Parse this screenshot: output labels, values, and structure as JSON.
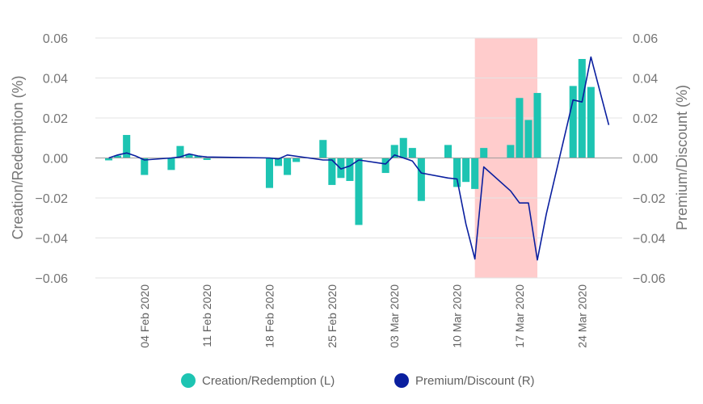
{
  "chart_data": {
    "type": "bar+line",
    "title": "",
    "xlabel": "",
    "ylabel_left": "Creation/Redemption (%)",
    "ylabel_right": "Premium/Discount (%)",
    "ylim_left": [
      -0.06,
      0.06
    ],
    "ylim_right": [
      -0.06,
      0.06
    ],
    "y_ticks_left": [
      "0.06",
      "0.04",
      "0.02",
      "0.00",
      "−0.02",
      "−0.04",
      "−0.06"
    ],
    "y_ticks_right": [
      "0.06",
      "0.04",
      "0.02",
      "0.00",
      "−0.02",
      "−0.04",
      "−0.06"
    ],
    "y_tick_values": [
      0.06,
      0.04,
      0.02,
      0,
      -0.02,
      -0.04,
      -0.06
    ],
    "x_ticks": [
      "04 Feb 2020",
      "11 Feb 2020",
      "18 Feb 2020",
      "25 Feb 2020",
      "03 Mar 2020",
      "10 Mar 2020",
      "17 Mar 2020",
      "24 Mar 2020"
    ],
    "x_tick_dates": [
      "2020-02-04",
      "2020-02-11",
      "2020-02-18",
      "2020-02-25",
      "2020-03-03",
      "2020-03-10",
      "2020-03-17",
      "2020-03-24"
    ],
    "x_range": [
      "2020-01-30",
      "2020-03-29"
    ],
    "grid": true,
    "highlight_range": [
      "2020-03-12",
      "2020-03-19"
    ],
    "highlight_color": "#ffcccc",
    "legend_position": "bottom",
    "series": [
      {
        "name": "Creation/Redemption (L)",
        "type": "bar",
        "axis": "left",
        "color": "#1dc4b2",
        "points": [
          {
            "x": "2020-01-31",
            "y": -0.0012
          },
          {
            "x": "2020-02-01",
            "y": 0.0012
          },
          {
            "x": "2020-02-02",
            "y": 0.0115
          },
          {
            "x": "2020-02-04",
            "y": -0.0085
          },
          {
            "x": "2020-02-07",
            "y": -0.006
          },
          {
            "x": "2020-02-08",
            "y": 0.006
          },
          {
            "x": "2020-02-09",
            "y": 0.002
          },
          {
            "x": "2020-02-10",
            "y": 0.001
          },
          {
            "x": "2020-02-11",
            "y": -0.001
          },
          {
            "x": "2020-02-18",
            "y": -0.015
          },
          {
            "x": "2020-02-19",
            "y": -0.004
          },
          {
            "x": "2020-02-20",
            "y": -0.0085
          },
          {
            "x": "2020-02-21",
            "y": -0.002
          },
          {
            "x": "2020-02-24",
            "y": 0.009
          },
          {
            "x": "2020-02-25",
            "y": -0.0135
          },
          {
            "x": "2020-02-26",
            "y": -0.01
          },
          {
            "x": "2020-02-27",
            "y": -0.0115
          },
          {
            "x": "2020-02-28",
            "y": -0.0335
          },
          {
            "x": "2020-03-02",
            "y": -0.0075
          },
          {
            "x": "2020-03-03",
            "y": 0.0065
          },
          {
            "x": "2020-03-04",
            "y": 0.01
          },
          {
            "x": "2020-03-05",
            "y": 0.005
          },
          {
            "x": "2020-03-06",
            "y": -0.0215
          },
          {
            "x": "2020-03-09",
            "y": 0.0065
          },
          {
            "x": "2020-03-10",
            "y": -0.0145
          },
          {
            "x": "2020-03-11",
            "y": -0.012
          },
          {
            "x": "2020-03-12",
            "y": -0.0155
          },
          {
            "x": "2020-03-13",
            "y": 0.005
          },
          {
            "x": "2020-03-16",
            "y": 0.0065
          },
          {
            "x": "2020-03-17",
            "y": 0.03
          },
          {
            "x": "2020-03-18",
            "y": 0.019
          },
          {
            "x": "2020-03-19",
            "y": 0.0325
          },
          {
            "x": "2020-03-23",
            "y": 0.036
          },
          {
            "x": "2020-03-24",
            "y": 0.0495
          },
          {
            "x": "2020-03-25",
            "y": 0.0355
          }
        ]
      },
      {
        "name": "Premium/Discount (R)",
        "type": "line",
        "axis": "right",
        "color": "#0a1f9f",
        "points": [
          {
            "x": "2020-01-31",
            "y": 0.0
          },
          {
            "x": "2020-02-01",
            "y": 0.0015
          },
          {
            "x": "2020-02-02",
            "y": 0.0025
          },
          {
            "x": "2020-02-03",
            "y": 0.001
          },
          {
            "x": "2020-02-04",
            "y": -0.001
          },
          {
            "x": "2020-02-07",
            "y": 0.0
          },
          {
            "x": "2020-02-08",
            "y": 0.0005
          },
          {
            "x": "2020-02-09",
            "y": 0.002
          },
          {
            "x": "2020-02-10",
            "y": 0.001
          },
          {
            "x": "2020-02-11",
            "y": 0.0005
          },
          {
            "x": "2020-02-18",
            "y": 0.0
          },
          {
            "x": "2020-02-19",
            "y": -0.0005
          },
          {
            "x": "2020-02-20",
            "y": 0.0015
          },
          {
            "x": "2020-02-24",
            "y": -0.001
          },
          {
            "x": "2020-02-25",
            "y": -0.001
          },
          {
            "x": "2020-02-26",
            "y": -0.0055
          },
          {
            "x": "2020-02-27",
            "y": -0.004
          },
          {
            "x": "2020-02-28",
            "y": -0.001
          },
          {
            "x": "2020-03-02",
            "y": -0.003
          },
          {
            "x": "2020-03-03",
            "y": 0.0015
          },
          {
            "x": "2020-03-04",
            "y": 0.0
          },
          {
            "x": "2020-03-05",
            "y": -0.0015
          },
          {
            "x": "2020-03-06",
            "y": -0.0075
          },
          {
            "x": "2020-03-09",
            "y": -0.01
          },
          {
            "x": "2020-03-10",
            "y": -0.0105
          },
          {
            "x": "2020-03-11",
            "y": -0.033
          },
          {
            "x": "2020-03-12",
            "y": -0.0505
          },
          {
            "x": "2020-03-13",
            "y": -0.0045
          },
          {
            "x": "2020-03-16",
            "y": -0.0165
          },
          {
            "x": "2020-03-17",
            "y": -0.0225
          },
          {
            "x": "2020-03-18",
            "y": -0.0225
          },
          {
            "x": "2020-03-19",
            "y": -0.051
          },
          {
            "x": "2020-03-20",
            "y": -0.028
          },
          {
            "x": "2020-03-23",
            "y": 0.029
          },
          {
            "x": "2020-03-24",
            "y": 0.028
          },
          {
            "x": "2020-03-25",
            "y": 0.0505
          },
          {
            "x": "2020-03-27",
            "y": 0.0165
          }
        ]
      }
    ]
  }
}
